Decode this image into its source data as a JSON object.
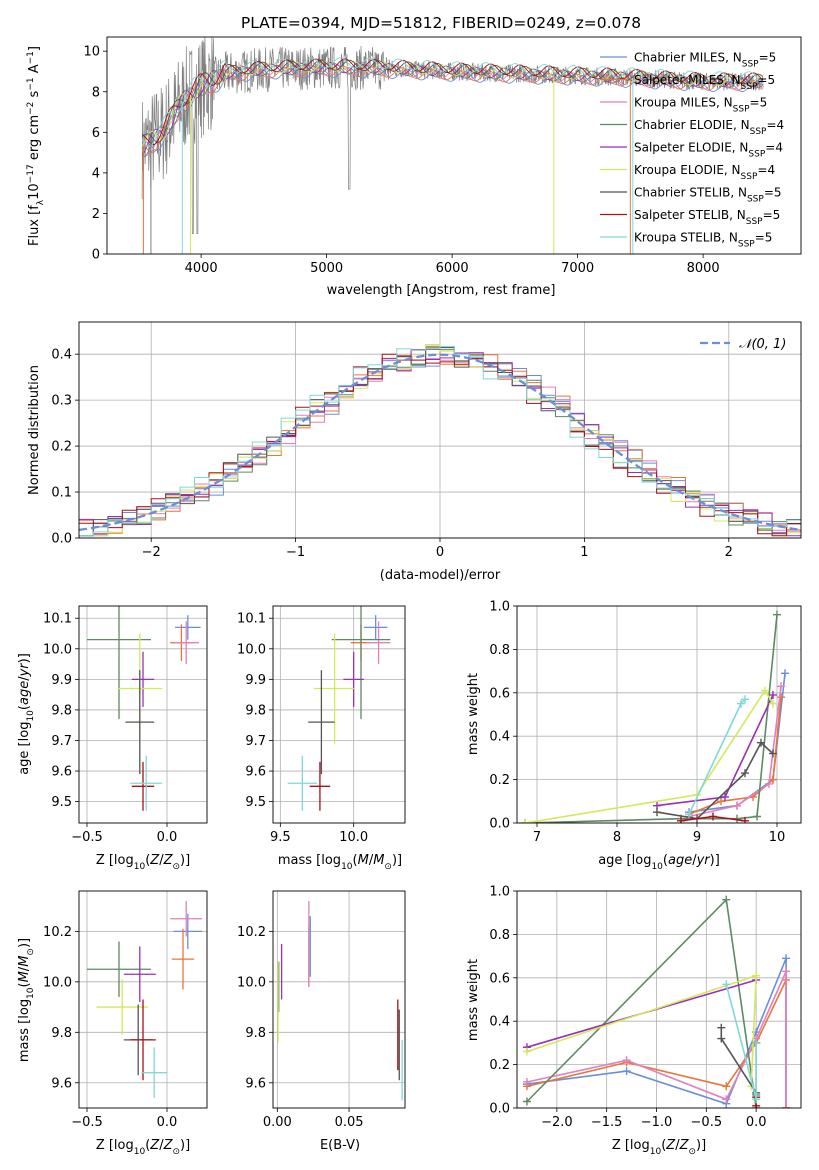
{
  "colors": [
    "#6a8fd9",
    "#e8763a",
    "#e37fbd",
    "#5d8a62",
    "#9b2fb3",
    "#d4e85a",
    "#555555",
    "#a8101a",
    "#7fd8d8"
  ],
  "chart_data": [
    {
      "id": "spectrum",
      "type": "line",
      "title": "PLATE=0394, MJD=51812, FIBERID=0249, z=0.078",
      "xlabel": "wavelength [Angstrom, rest frame]",
      "ylabel_parts": [
        "Flux [f",
        "λ",
        "10",
        "−17",
        " erg cm",
        "−2",
        " s",
        "−1",
        " A",
        "−1",
        "]"
      ],
      "xlim": [
        3250,
        8780
      ],
      "ylim": [
        0,
        10.7
      ],
      "xticks": [
        4000,
        5000,
        6000,
        7000,
        8000
      ],
      "yticks": [
        0,
        2,
        4,
        6,
        8,
        10
      ],
      "continuum": {
        "x": [
          3550,
          3700,
          3850,
          4000,
          4200,
          4500,
          5000,
          5500,
          6000,
          6500,
          7000,
          7400,
          8000,
          8400
        ],
        "y": [
          5.3,
          6.0,
          7.5,
          8.3,
          8.9,
          9.1,
          9.2,
          9.15,
          9.0,
          8.9,
          8.8,
          8.7,
          8.5,
          8.5
        ]
      },
      "series": [
        {
          "name": "Chabrier MILES, N",
          "sub": "SSP",
          "suffix": "=5"
        },
        {
          "name": "Salpeter MILES, N",
          "sub": "SSP",
          "suffix": "=5"
        },
        {
          "name": "Kroupa MILES, N",
          "sub": "SSP",
          "suffix": "=5"
        },
        {
          "name": "Chabrier ELODIE, N",
          "sub": "SSP",
          "suffix": "=4"
        },
        {
          "name": "Salpeter ELODIE, N",
          "sub": "SSP",
          "suffix": "=4"
        },
        {
          "name": "Kroupa ELODIE, N",
          "sub": "SSP",
          "suffix": "=4"
        },
        {
          "name": "Chabrier STELIB, N",
          "sub": "SSP",
          "suffix": "=5"
        },
        {
          "name": "Salpeter STELIB, N",
          "sub": "SSP",
          "suffix": "=5"
        },
        {
          "name": "Kroupa STELIB, N",
          "sub": "SSP",
          "suffix": "=5"
        }
      ]
    },
    {
      "id": "residuals",
      "type": "line",
      "xlabel": "(data-model)/error",
      "ylabel": "Normed distribution",
      "xlim": [
        -2.5,
        2.5
      ],
      "ylim": [
        0,
        0.47
      ],
      "xticks": [
        -2,
        -1,
        0,
        1,
        2
      ],
      "xticklabels": [
        "−2",
        "−1",
        "0",
        "1",
        "2"
      ],
      "yticks": [
        0,
        0.1,
        0.2,
        0.3,
        0.4
      ],
      "yticklabels": [
        "0.0",
        "0.1",
        "0.2",
        "0.3",
        "0.4"
      ],
      "legend": "𝒩(0, 1)",
      "bin_width": 0.1,
      "reference": "normal(0,1)"
    },
    {
      "id": "age_vs_Z",
      "type": "scatter",
      "xlabel": "Z [log10(Z/Z⊙)]",
      "ylabel": "age  [log10(age/yr)]",
      "xlim": [
        -0.55,
        0.25
      ],
      "ylim": [
        9.43,
        10.14
      ],
      "xticks": [
        -0.5,
        0.0
      ],
      "xticklabels": [
        "−0.5",
        "0.0"
      ],
      "yticks": [
        9.5,
        9.6,
        9.7,
        9.8,
        9.9,
        10.0,
        10.1
      ],
      "yticklabels": [
        "9.5",
        "9.6",
        "9.7",
        "9.8",
        "9.9",
        "10.0",
        "10.1"
      ],
      "points": [
        {
          "x": 0.13,
          "y": 10.07,
          "xe": 0.08,
          "ye": 0.04
        },
        {
          "x": 0.09,
          "y": 10.02,
          "xe": 0.07,
          "ye": 0.06
        },
        {
          "x": 0.12,
          "y": 10.02,
          "xe": 0.08,
          "ye": 0.07
        },
        {
          "x": -0.3,
          "y": 10.03,
          "xe": 0.2,
          "ye": 0.26
        },
        {
          "x": -0.15,
          "y": 9.9,
          "xe": 0.07,
          "ye": 0.09
        },
        {
          "x": -0.17,
          "y": 9.87,
          "xe": 0.14,
          "ye": 0.18
        },
        {
          "x": -0.17,
          "y": 9.76,
          "xe": 0.09,
          "ye": 0.17
        },
        {
          "x": -0.15,
          "y": 9.55,
          "xe": 0.07,
          "ye": 0.08
        },
        {
          "x": -0.13,
          "y": 9.56,
          "xe": 0.1,
          "ye": 0.09
        }
      ]
    },
    {
      "id": "age_vs_mass",
      "type": "scatter",
      "xlabel": "mass [log10(M/M⊙)]",
      "xlim": [
        9.45,
        10.35
      ],
      "ylim": [
        9.43,
        10.14
      ],
      "xticks": [
        9.5,
        10.0
      ],
      "xticklabels": [
        "9.5",
        "10.0"
      ],
      "yticks": [
        9.5,
        9.6,
        9.7,
        9.8,
        9.9,
        10.0,
        10.1
      ],
      "yticklabels": [
        "9.5",
        "9.6",
        "9.7",
        "9.8",
        "9.9",
        "10.0",
        "10.1"
      ],
      "points": [
        {
          "x": 10.15,
          "y": 10.07,
          "xe": 0.08,
          "ye": 0.04
        },
        {
          "x": 10.05,
          "y": 10.02,
          "xe": 0.07,
          "ye": 0.06
        },
        {
          "x": 10.17,
          "y": 10.02,
          "xe": 0.08,
          "ye": 0.07
        },
        {
          "x": 10.05,
          "y": 10.03,
          "xe": 0.2,
          "ye": 0.26
        },
        {
          "x": 10.0,
          "y": 9.9,
          "xe": 0.07,
          "ye": 0.09
        },
        {
          "x": 9.87,
          "y": 9.87,
          "xe": 0.14,
          "ye": 0.18
        },
        {
          "x": 9.78,
          "y": 9.76,
          "xe": 0.09,
          "ye": 0.17
        },
        {
          "x": 9.77,
          "y": 9.55,
          "xe": 0.07,
          "ye": 0.08
        },
        {
          "x": 9.65,
          "y": 9.56,
          "xe": 0.1,
          "ye": 0.09
        }
      ]
    },
    {
      "id": "massweight_vs_age",
      "type": "line",
      "xlabel": "age  [log10(age/yr)]",
      "ylabel": "mass weight",
      "xlim": [
        6.75,
        10.3
      ],
      "ylim": [
        0,
        1.0
      ],
      "xticks": [
        7,
        8,
        9,
        10
      ],
      "xticklabels": [
        "7",
        "8",
        "9",
        "10"
      ],
      "yticks": [
        0,
        0.2,
        0.4,
        0.6,
        0.8,
        1.0
      ],
      "yticklabels": [
        "0.0",
        "0.2",
        "0.4",
        "0.6",
        "0.8",
        "1.0"
      ],
      "series": [
        {
          "x": [
            8.9,
            9.5,
            9.95,
            10.1
          ],
          "y": [
            0.05,
            0.08,
            0.2,
            0.69
          ]
        },
        {
          "x": [
            8.9,
            9.3,
            9.7,
            9.95,
            10.05
          ],
          "y": [
            0.04,
            0.1,
            0.12,
            0.2,
            0.58
          ]
        },
        {
          "x": [
            8.9,
            9.5,
            9.9,
            10.05
          ],
          "y": [
            0.03,
            0.08,
            0.18,
            0.63
          ]
        },
        {
          "x": [
            6.85,
            8.8,
            9.5,
            9.75,
            10.0
          ],
          "y": [
            0.0,
            0.02,
            0.02,
            0.03,
            0.96
          ]
        },
        {
          "x": [
            8.5,
            9.35,
            9.95
          ],
          "y": [
            0.08,
            0.12,
            0.59
          ]
        },
        {
          "x": [
            6.85,
            9.0,
            9.85,
            9.95
          ],
          "y": [
            0.0,
            0.13,
            0.61,
            0.55
          ]
        },
        {
          "x": [
            8.5,
            9.0,
            9.6,
            9.8,
            9.95
          ],
          "y": [
            0.05,
            0.02,
            0.23,
            0.37,
            0.32
          ]
        },
        {
          "x": [
            8.8,
            9.2,
            9.6
          ],
          "y": [
            0.01,
            0.03,
            0.01
          ]
        },
        {
          "x": [
            8.9,
            9.55,
            9.6
          ],
          "y": [
            0.04,
            0.55,
            0.57
          ]
        }
      ]
    },
    {
      "id": "mass_vs_Z",
      "type": "scatter",
      "xlabel": "Z [log10(Z/Z⊙)]",
      "ylabel": "mass [log10(M/M⊙)]",
      "xlim": [
        -0.55,
        0.25
      ],
      "ylim": [
        9.5,
        10.36
      ],
      "xticks": [
        -0.5,
        0.0
      ],
      "xticklabels": [
        "−0.5",
        "0.0"
      ],
      "yticks": [
        9.6,
        9.8,
        10.0,
        10.2
      ],
      "yticklabels": [
        "9.6",
        "9.8",
        "10.0",
        "10.2"
      ],
      "points": [
        {
          "x": 0.13,
          "y": 10.2,
          "xe": 0.09,
          "ye": 0.07
        },
        {
          "x": 0.1,
          "y": 10.09,
          "xe": 0.07,
          "ye": 0.12
        },
        {
          "x": 0.12,
          "y": 10.25,
          "xe": 0.1,
          "ye": 0.07
        },
        {
          "x": -0.3,
          "y": 10.05,
          "xe": 0.2,
          "ye": 0.11
        },
        {
          "x": -0.17,
          "y": 10.03,
          "xe": 0.1,
          "ye": 0.11
        },
        {
          "x": -0.28,
          "y": 9.9,
          "xe": 0.16,
          "ye": 0.11
        },
        {
          "x": -0.18,
          "y": 9.77,
          "xe": 0.09,
          "ye": 0.14
        },
        {
          "x": -0.15,
          "y": 9.77,
          "xe": 0.08,
          "ye": 0.16
        },
        {
          "x": -0.08,
          "y": 9.64,
          "xe": 0.08,
          "ye": 0.1
        }
      ]
    },
    {
      "id": "mass_vs_EBV",
      "type": "scatter",
      "xlabel": "E(B-V)",
      "xlim": [
        -0.003,
        0.089
      ],
      "ylim": [
        9.5,
        10.36
      ],
      "xticks": [
        0.0,
        0.05
      ],
      "xticklabels": [
        "0.00",
        "0.05"
      ],
      "yticks": [
        9.6,
        9.8,
        10.0,
        10.2
      ],
      "yticklabels": [
        "9.6",
        "9.8",
        "10.0",
        "10.2"
      ],
      "points": [
        {
          "x": 0.023,
          "y": 10.14,
          "ye": 0.12
        },
        {
          "x": 0.022,
          "y": 10.1,
          "ye": 0.12
        },
        {
          "x": 0.022,
          "y": 10.15,
          "ye": 0.17
        },
        {
          "x": 0.001,
          "y": 9.98,
          "ye": 0.1
        },
        {
          "x": 0.003,
          "y": 10.04,
          "ye": 0.11
        },
        {
          "x": 0.0005,
          "y": 9.92,
          "ye": 0.16
        },
        {
          "x": 0.085,
          "y": 9.75,
          "ye": 0.14
        },
        {
          "x": 0.084,
          "y": 9.79,
          "ye": 0.14
        },
        {
          "x": 0.087,
          "y": 9.65,
          "ye": 0.12
        }
      ]
    },
    {
      "id": "massweight_vs_Z",
      "type": "line",
      "xlabel": "Z [log10(Z/Z⊙)]",
      "ylabel": "mass weight",
      "xlim": [
        -2.4,
        0.45
      ],
      "ylim": [
        0,
        1.0
      ],
      "xticks": [
        -2.0,
        -1.5,
        -1.0,
        -0.5,
        0.0
      ],
      "xticklabels": [
        "−2.0",
        "−1.5",
        "−1.0",
        "−0.5",
        "0.0"
      ],
      "yticks": [
        0,
        0.2,
        0.4,
        0.6,
        0.8,
        1.0
      ],
      "yticklabels": [
        "0.0",
        "0.2",
        "0.4",
        "0.6",
        "0.8",
        "1.0"
      ],
      "series": [
        {
          "x": [
            -2.3,
            -1.3,
            -0.3,
            0.0,
            0.3,
            0.3
          ],
          "y": [
            0.11,
            0.17,
            0.02,
            0.35,
            0.69,
            0.0
          ]
        },
        {
          "x": [
            -2.3,
            -1.3,
            -0.3,
            0.0,
            0.3,
            0.3
          ],
          "y": [
            0.1,
            0.21,
            0.1,
            0.3,
            0.59,
            0.0
          ]
        },
        {
          "x": [
            -2.3,
            -1.3,
            -0.3,
            0.0,
            0.3,
            0.3
          ],
          "y": [
            0.12,
            0.22,
            0.04,
            0.32,
            0.63,
            0.0
          ]
        },
        {
          "x": [
            -2.3,
            -0.3,
            0.0,
            0.0
          ],
          "y": [
            0.03,
            0.96,
            0.0,
            0.06
          ]
        },
        {
          "x": [
            -2.3,
            0.0
          ],
          "y": [
            0.28,
            0.59
          ]
        },
        {
          "x": [
            -2.3,
            0.0,
            -0.05
          ],
          "y": [
            0.26,
            0.61,
            0.1
          ]
        },
        {
          "x": [
            -0.35,
            -0.35,
            0.0,
            0.0
          ],
          "y": [
            0.37,
            0.32,
            0.07,
            0.3
          ]
        },
        {
          "x": [
            0.0,
            0.0
          ],
          "y": [
            0.01,
            0.05
          ]
        },
        {
          "x": [
            -0.3,
            0.0,
            0.0
          ],
          "y": [
            0.57,
            0.04,
            0.3
          ]
        }
      ]
    }
  ]
}
